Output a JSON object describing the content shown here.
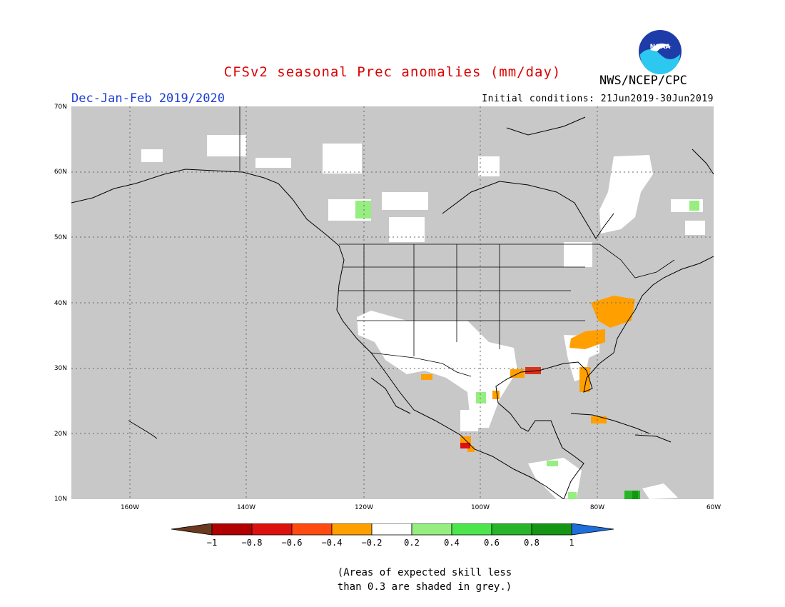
{
  "title": "CFSv2 seasonal Prec anomalies (mm/day)",
  "agency": "NWS/NCEP/CPC",
  "logo_text": "NOAA",
  "season": "Dec-Jan-Feb 2019/2020",
  "initial_conditions": "Initial conditions: 21Jun2019-30Jun2019",
  "lat_labels": [
    "70N",
    "60N",
    "50N",
    "40N",
    "30N",
    "20N",
    "10N"
  ],
  "lon_labels": [
    "160W",
    "140W",
    "120W",
    "100W",
    "80W",
    "60W"
  ],
  "colorbar": {
    "labels": [
      "−1",
      "−0.8",
      "−0.6",
      "−0.4",
      "−0.2",
      "0.2",
      "0.4",
      "0.6",
      "0.8",
      "1"
    ],
    "colors": [
      "#6b3a1e",
      "#b00000",
      "#dd1010",
      "#ff4a10",
      "#ffa000",
      "#ffffff",
      "#96ee80",
      "#4ce64c",
      "#28b428",
      "#149614",
      "#1e6edc"
    ]
  },
  "note": {
    "line1": "(Areas of expected skill less",
    "line2": "than 0.3 are shaded in grey.)"
  },
  "colors": {
    "title": "#dd0000",
    "season": "#1a3cd8",
    "masked_grey": "#c8c8c8"
  }
}
